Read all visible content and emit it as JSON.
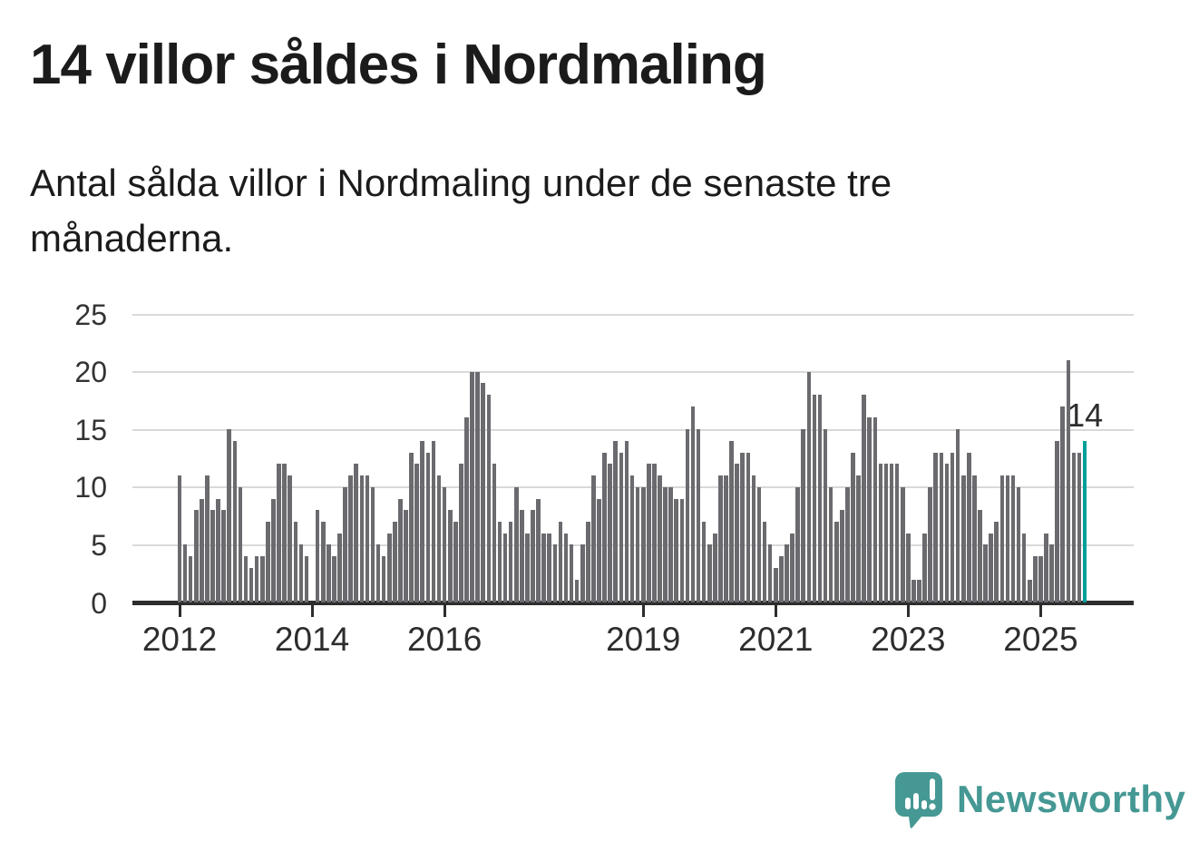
{
  "header": {
    "title": "14 villor såldes i Nordmaling",
    "subtitle": "Antal sålda villor i Nordmaling under de senaste tre månaderna."
  },
  "annotation": {
    "label": "14"
  },
  "logo": {
    "text": "Newsworthy",
    "icon": "speech-bubble-bar-chart-icon"
  },
  "colors": {
    "bar": "#6a6a6f",
    "highlight": "#009f99",
    "gridline": "#d9d9d9",
    "axis": "#2d2d2d",
    "text": "#1b1b1b",
    "logo_teal": "#459894"
  },
  "chart_data": {
    "type": "bar",
    "title": "14 villor såldes i Nordmaling",
    "subtitle": "Antal sålda villor i Nordmaling under de senaste tre månaderna.",
    "unit": "antal sålda villor (rullande tre månader)",
    "start": "2012-01",
    "frequency": "monthly",
    "ylim": [
      0,
      25
    ],
    "grid": true,
    "y_ticks": [
      0,
      5,
      10,
      15,
      20,
      25
    ],
    "x_ticks": [
      {
        "label": "2012",
        "month_index": 0
      },
      {
        "label": "2014",
        "month_index": 24
      },
      {
        "label": "2016",
        "month_index": 48
      },
      {
        "label": "2019",
        "month_index": 84
      },
      {
        "label": "2021",
        "month_index": 108
      },
      {
        "label": "2023",
        "month_index": 132
      },
      {
        "label": "2025",
        "month_index": 156
      }
    ],
    "values": [
      11,
      5,
      4,
      8,
      9,
      11,
      8,
      9,
      8,
      15,
      14,
      10,
      4,
      3,
      4,
      4,
      7,
      9,
      12,
      12,
      11,
      7,
      5,
      4,
      0,
      8,
      7,
      5,
      4,
      6,
      10,
      11,
      12,
      11,
      11,
      10,
      5,
      4,
      6,
      7,
      9,
      8,
      13,
      12,
      14,
      13,
      14,
      11,
      10,
      8,
      7,
      12,
      16,
      20,
      20,
      19,
      18,
      12,
      7,
      6,
      7,
      10,
      8,
      6,
      8,
      9,
      6,
      6,
      5,
      7,
      6,
      5,
      2,
      5,
      7,
      11,
      9,
      13,
      12,
      14,
      13,
      14,
      11,
      10,
      10,
      12,
      12,
      11,
      10,
      10,
      9,
      9,
      15,
      17,
      15,
      7,
      5,
      6,
      11,
      11,
      14,
      12,
      13,
      13,
      11,
      10,
      7,
      5,
      3,
      4,
      5,
      6,
      10,
      15,
      20,
      18,
      18,
      15,
      10,
      7,
      8,
      10,
      13,
      11,
      18,
      16,
      16,
      12,
      12,
      12,
      12,
      10,
      6,
      2,
      2,
      6,
      10,
      13,
      13,
      12,
      13,
      15,
      11,
      13,
      11,
      8,
      5,
      6,
      7,
      11,
      11,
      11,
      10,
      6,
      2,
      4,
      4,
      6,
      5,
      14,
      17,
      21,
      13,
      13,
      14
    ],
    "highlight_last_bar": true,
    "last_value_label": "14",
    "legend": "none"
  }
}
